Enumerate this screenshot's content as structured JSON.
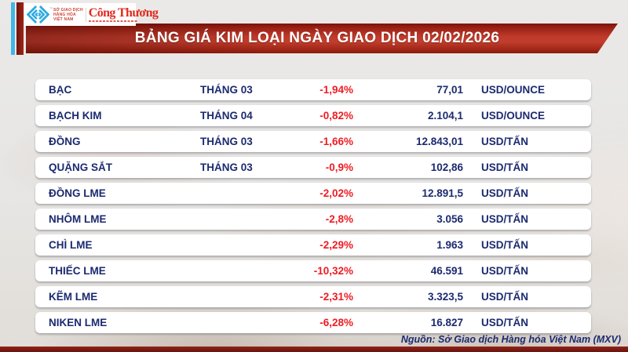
{
  "header": {
    "mxv_logo": {
      "line1": "SỞ GIAO DỊCH",
      "line2": "HÀNG HÓA",
      "line3": "VIỆT NAM",
      "trademark": "™"
    },
    "congthuong_logo": "Công Thương",
    "title": "BẢNG GIÁ KIM LOẠI NGÀY GIAO DỊCH 02/02/2026"
  },
  "chart_data": {
    "type": "table",
    "title": "BẢNG GIÁ KIM LOẠI NGÀY GIAO DỊCH 02/02/2026",
    "rows": [
      {
        "name": "BẠC",
        "month": "THÁNG 03",
        "change": "-1,94%",
        "price": "77,01",
        "unit": "USD/OUNCE"
      },
      {
        "name": "BẠCH KIM",
        "month": "THÁNG 04",
        "change": "-0,82%",
        "price": "2.104,1",
        "unit": "USD/OUNCE"
      },
      {
        "name": "ĐỒNG",
        "month": "THÁNG 03",
        "change": "-1,66%",
        "price": "12.843,01",
        "unit": "USD/TẤN"
      },
      {
        "name": "QUẶNG SẮT",
        "month": "THÁNG 03",
        "change": "-0,9%",
        "price": "102,86",
        "unit": "USD/TẤN"
      },
      {
        "name": "ĐỒNG LME",
        "month": "",
        "change": "-2,02%",
        "price": "12.891,5",
        "unit": "USD/TẤN"
      },
      {
        "name": "NHÔM LME",
        "month": "",
        "change": "-2,8%",
        "price": "3.056",
        "unit": "USD/TẤN"
      },
      {
        "name": "CHÌ LME",
        "month": "",
        "change": "-2,29%",
        "price": "1.963",
        "unit": "USD/TẤN"
      },
      {
        "name": "THIẾC LME",
        "month": "",
        "change": "-10,32%",
        "price": "46.591",
        "unit": "USD/TẤN"
      },
      {
        "name": "KẼM LME",
        "month": "",
        "change": "-2,31%",
        "price": "3.323,5",
        "unit": "USD/TẤN"
      },
      {
        "name": "NIKEN LME",
        "month": "",
        "change": "-6,28%",
        "price": "16.827",
        "unit": "USD/TẤN"
      }
    ],
    "layout_hints": {
      "change_column_color": "negative values shown in red",
      "row_style": "white rounded bars on light gray background",
      "grid": false,
      "legend": false
    }
  },
  "footer": {
    "source": "Nguồn: Sở Giao dịch Hàng hóa Việt Nam (MXV)"
  },
  "colors": {
    "banner_red": "#bf3a2a",
    "banner_dark_red": "#7c130c",
    "navy_text": "#1b2a70",
    "change_red": "#ee1c23",
    "logo_cyan": "#2ba9e0",
    "logo_red": "#cd4334",
    "congthuong_red": "#e02b20",
    "background": "#e7e6e4",
    "bottom_strip": "#7a1a12",
    "accent_cyan_bar": "#41b6e6"
  }
}
